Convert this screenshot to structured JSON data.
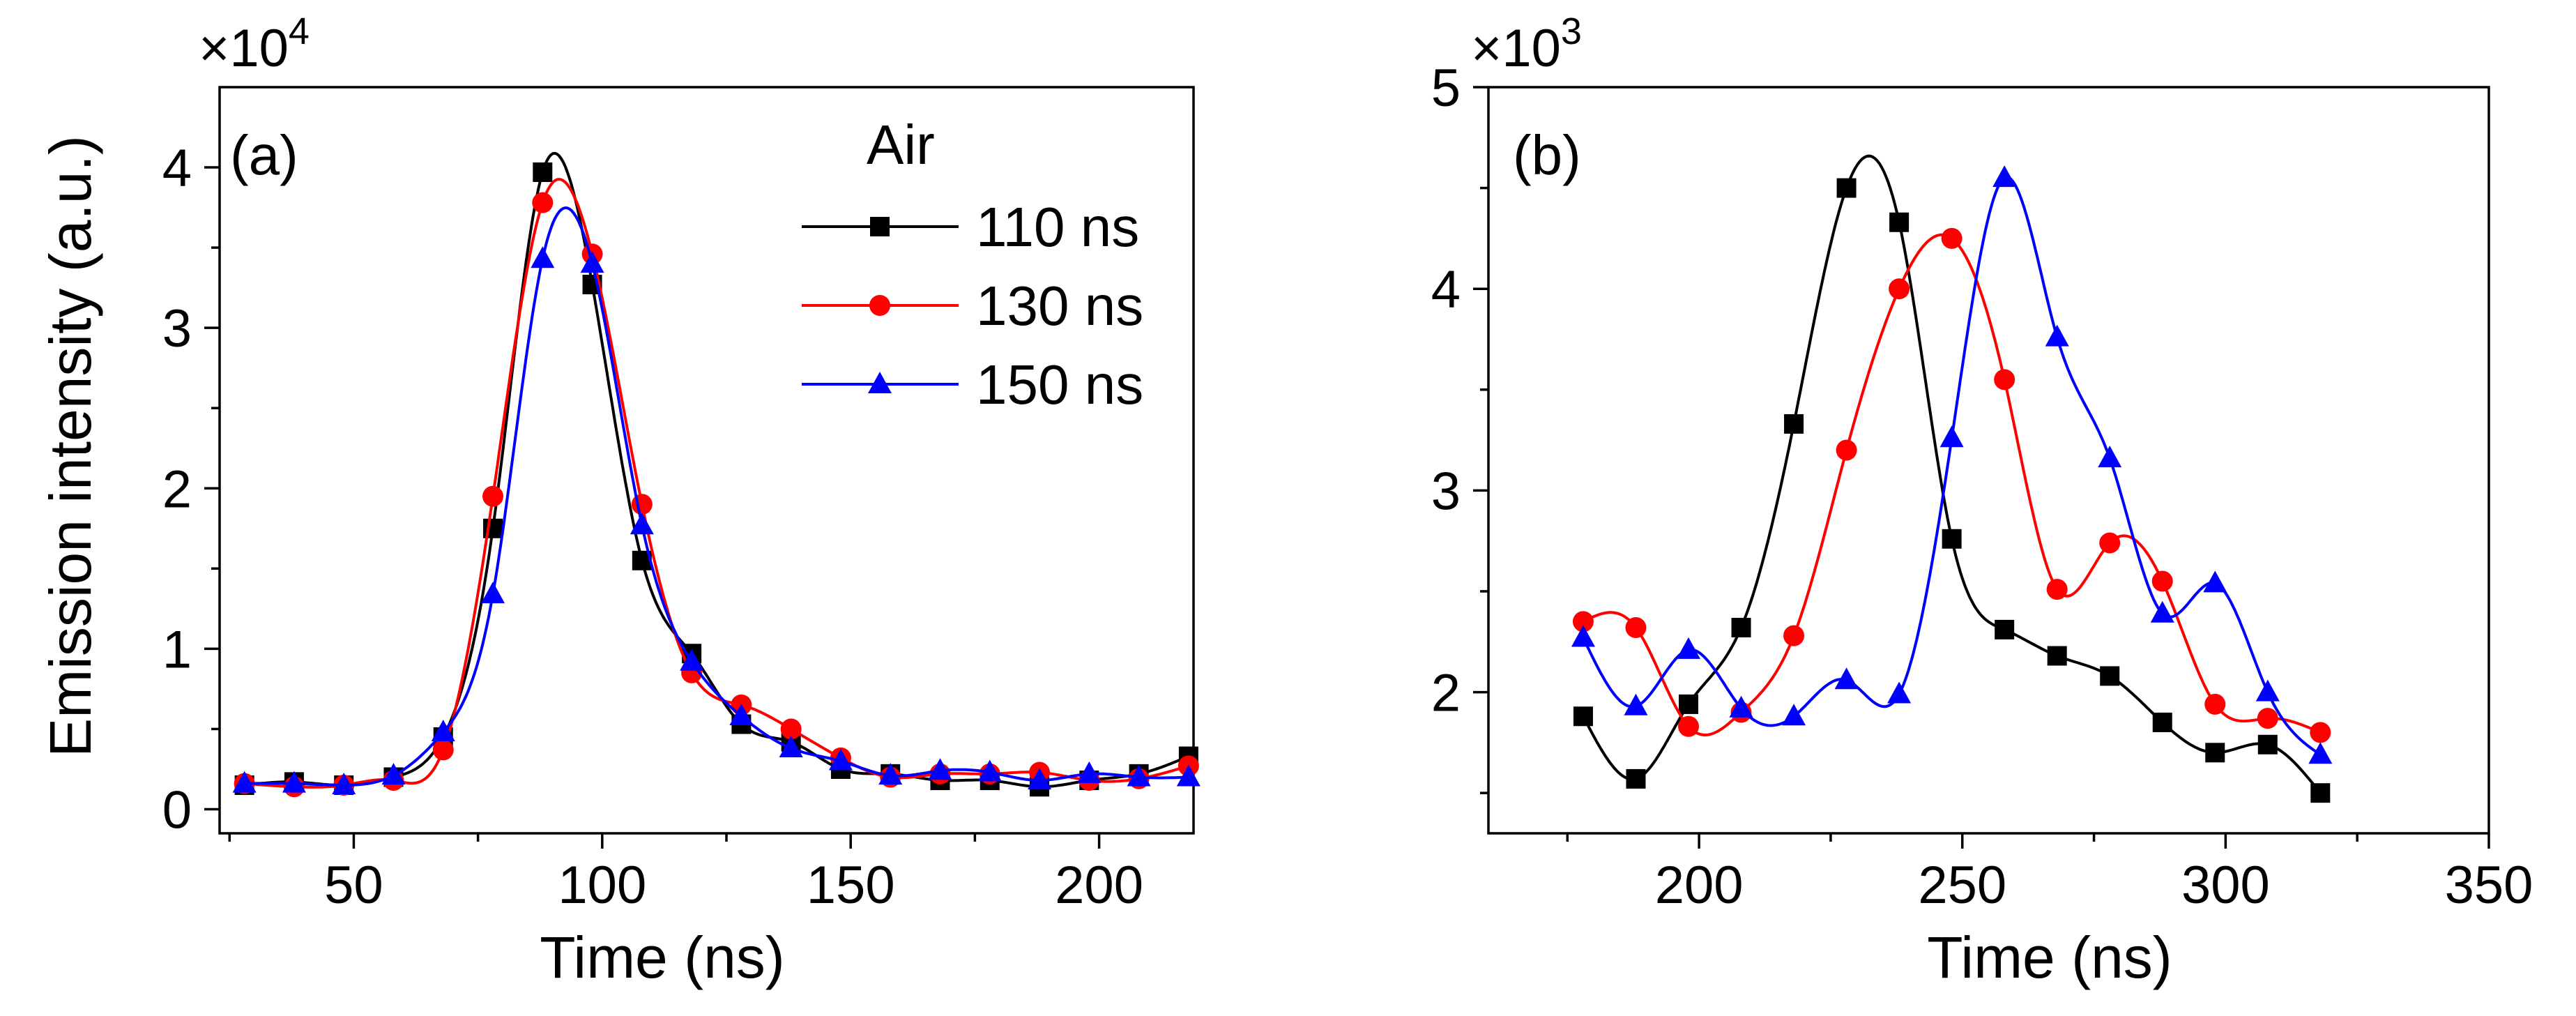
{
  "chart_data": [
    {
      "type": "line",
      "panel_label": "(a)",
      "multiplier": "×10",
      "multiplier_exp": "4",
      "xlabel": "Time (ns)",
      "ylabel": "Emission intensity (a.u.)",
      "xlim": [
        23,
        219
      ],
      "ylim": [
        -0.15,
        4.5
      ],
      "xticks": [
        50,
        100,
        150,
        200
      ],
      "xtick_labels": [
        "50",
        "100",
        "150",
        "200"
      ],
      "xminor": [
        25,
        75,
        125,
        175
      ],
      "yticks": [
        0,
        1,
        2,
        3,
        4
      ],
      "ytick_labels": [
        "0",
        "1",
        "2",
        "3",
        "4"
      ],
      "yminor": [
        0.5,
        1.5,
        2.5,
        3.5
      ],
      "legend_title": "Air",
      "series": [
        {
          "name": "110 ns",
          "color": "#000000",
          "marker": "square",
          "x": [
            28,
            38,
            48,
            58,
            68,
            78,
            88,
            98,
            108,
            118,
            128,
            138,
            148,
            158,
            168,
            178,
            188,
            198,
            208,
            218
          ],
          "y": [
            0.15,
            0.17,
            0.15,
            0.2,
            0.45,
            1.75,
            3.97,
            3.27,
            1.55,
            0.97,
            0.53,
            0.42,
            0.25,
            0.22,
            0.18,
            0.18,
            0.14,
            0.18,
            0.22,
            0.33
          ]
        },
        {
          "name": "130 ns",
          "color": "#ff0000",
          "marker": "circle",
          "x": [
            28,
            38,
            48,
            58,
            68,
            78,
            88,
            98,
            108,
            118,
            128,
            138,
            148,
            158,
            168,
            178,
            188,
            198,
            208,
            218
          ],
          "y": [
            0.16,
            0.14,
            0.15,
            0.18,
            0.37,
            1.95,
            3.78,
            3.46,
            1.9,
            0.85,
            0.65,
            0.5,
            0.32,
            0.2,
            0.22,
            0.22,
            0.23,
            0.18,
            0.19,
            0.27
          ]
        },
        {
          "name": "150 ns",
          "color": "#0000ff",
          "marker": "triangle",
          "x": [
            28,
            38,
            48,
            58,
            68,
            78,
            88,
            98,
            108,
            118,
            128,
            138,
            148,
            158,
            168,
            178,
            188,
            198,
            208,
            218
          ],
          "y": [
            0.16,
            0.16,
            0.15,
            0.21,
            0.48,
            1.34,
            3.43,
            3.4,
            1.77,
            0.92,
            0.58,
            0.38,
            0.3,
            0.21,
            0.24,
            0.23,
            0.18,
            0.22,
            0.2,
            0.2
          ]
        }
      ]
    },
    {
      "type": "line",
      "panel_label": "(b)",
      "multiplier": "×10",
      "multiplier_exp": "3",
      "xlabel": "Time (ns)",
      "ylabel": "",
      "xlim": [
        160,
        350
      ],
      "ylim": [
        1.3,
        5.0
      ],
      "xticks": [
        200,
        250,
        300,
        350
      ],
      "xtick_labels": [
        "200",
        "250",
        "300",
        "350"
      ],
      "xminor": [
        175,
        225,
        275,
        325
      ],
      "yticks": [
        2,
        3,
        4,
        5
      ],
      "ytick_labels": [
        "2",
        "3",
        "4",
        "5"
      ],
      "yminor": [
        1.5,
        2.5,
        3.5,
        4.5
      ],
      "series": [
        {
          "name": "110 ns",
          "color": "#000000",
          "marker": "square",
          "x": [
            178,
            188,
            198,
            208,
            218,
            228,
            238,
            248,
            258,
            268,
            278,
            288,
            298,
            308,
            318
          ],
          "y": [
            1.88,
            1.57,
            1.94,
            2.32,
            3.33,
            4.5,
            4.33,
            2.76,
            2.31,
            2.18,
            2.08,
            1.85,
            1.7,
            1.74,
            1.5
          ]
        },
        {
          "name": "130 ns",
          "color": "#ff0000",
          "marker": "circle",
          "x": [
            178,
            188,
            198,
            208,
            218,
            228,
            238,
            248,
            258,
            268,
            278,
            288,
            298,
            308,
            318
          ],
          "y": [
            2.35,
            2.32,
            1.83,
            1.9,
            2.28,
            3.2,
            4.0,
            4.25,
            3.55,
            2.51,
            2.74,
            2.55,
            1.94,
            1.87,
            1.8
          ]
        },
        {
          "name": "150 ns",
          "color": "#0000ff",
          "marker": "triangle",
          "x": [
            178,
            188,
            198,
            208,
            218,
            228,
            238,
            248,
            258,
            268,
            278,
            288,
            298,
            308,
            318
          ],
          "y": [
            2.27,
            1.93,
            2.21,
            1.92,
            1.88,
            2.06,
            1.99,
            3.26,
            4.55,
            3.76,
            3.16,
            2.39,
            2.54,
            2.0,
            1.69
          ]
        }
      ]
    }
  ]
}
